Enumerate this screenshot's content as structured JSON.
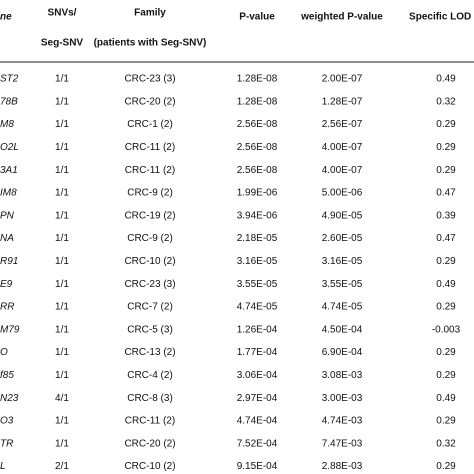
{
  "table": {
    "headers": [
      [
        "ne"
      ],
      [
        "SNVs/",
        "Seg-SNV"
      ],
      [
        "Family",
        "(patients with Seg-SNV)"
      ],
      [
        "P-value"
      ],
      [
        "weighted P-value"
      ],
      [
        "Specific LOD at"
      ]
    ],
    "rows": [
      [
        "ST2",
        "1/1",
        "CRC-23 (3)",
        "1.28E-08",
        "2.00E-07",
        "0.49"
      ],
      [
        "78B",
        "1/1",
        "CRC-20 (2)",
        "1.28E-08",
        "1.28E-07",
        "0.32"
      ],
      [
        "M8",
        "1/1",
        "CRC-1 (2)",
        "2.56E-08",
        "2.56E-07",
        "0.29"
      ],
      [
        "O2L",
        "1/1",
        "CRC-11 (2)",
        "2.56E-08",
        "4.00E-07",
        "0.29"
      ],
      [
        "3A1",
        "1/1",
        "CRC-11 (2)",
        "2.56E-08",
        "4.00E-07",
        "0.29"
      ],
      [
        "IM8",
        "1/1",
        "CRC-9 (2)",
        "1.99E-06",
        "5.00E-06",
        "0.47"
      ],
      [
        "PN",
        "1/1",
        "CRC-19 (2)",
        "3.94E-06",
        "4.90E-05",
        "0.39"
      ],
      [
        "NA",
        "1/1",
        "CRC-9 (2)",
        "2.18E-05",
        "2.60E-05",
        "0.47"
      ],
      [
        "R91",
        "1/1",
        "CRC-10 (2)",
        "3.16E-05",
        "3.16E-05",
        "0.29"
      ],
      [
        "E9",
        "1/1",
        "CRC-23 (3)",
        "3.55E-05",
        "3.55E-05",
        "0.49"
      ],
      [
        "RR",
        "1/1",
        "CRC-7 (2)",
        "4.74E-05",
        "4.74E-05",
        "0.29"
      ],
      [
        "M79",
        "1/1",
        "CRC-5 (3)",
        "1.26E-04",
        "4.50E-04",
        "-0.003"
      ],
      [
        "O",
        "1/1",
        "CRC-13 (2)",
        "1.77E-04",
        "6.90E-04",
        "0.29"
      ],
      [
        "f85",
        "1/1",
        "CRC-4 (2)",
        "3.06E-04",
        "3.08E-03",
        "0.29"
      ],
      [
        "N23",
        "4/1",
        "CRC-8 (3)",
        "2.97E-04",
        "3.00E-03",
        "0.49"
      ],
      [
        "O3",
        "1/1",
        "CRC-11 (2)",
        "4.74E-04",
        "4.74E-03",
        "0.29"
      ],
      [
        "TR",
        "1/1",
        "CRC-20 (2)",
        "7.52E-04",
        "7.47E-03",
        "0.32"
      ],
      [
        "L",
        "2/1",
        "CRC-10 (2)",
        "9.15E-04",
        "2.88E-03",
        "0.29"
      ]
    ]
  }
}
